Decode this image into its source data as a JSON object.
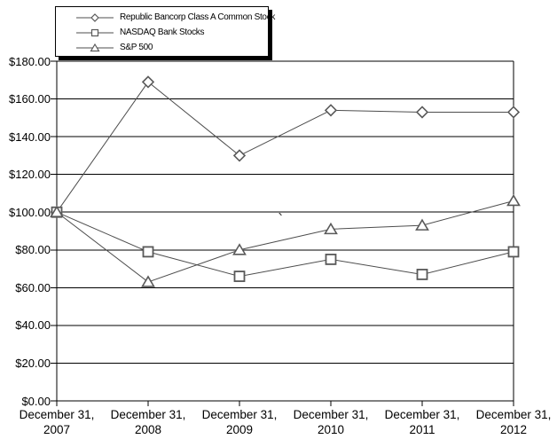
{
  "chart_data": {
    "type": "line",
    "title": "",
    "categories": [
      "December 31, 2007",
      "December 31, 2008",
      "December 31, 2009",
      "December 31, 2010",
      "December 31, 2011",
      "December 31, 2012"
    ],
    "series": [
      {
        "name": "Republic Bancorp Class A Common Stock",
        "marker": "diamond",
        "values": [
          100,
          169,
          130,
          154,
          153,
          153
        ]
      },
      {
        "name": "NASDAQ Bank Stocks",
        "marker": "square",
        "values": [
          100,
          79,
          66,
          75,
          67,
          79
        ]
      },
      {
        "name": "S&P 500",
        "marker": "triangle",
        "values": [
          100,
          63,
          80,
          91,
          93,
          106
        ]
      }
    ],
    "xlabel": "",
    "ylabel": "",
    "ylim": [
      0,
      180
    ],
    "y_tick_step": 20,
    "y_tick_labels": [
      "$0.00",
      "$20.00",
      "$40.00",
      "$60.00",
      "$80.00",
      "$100.00",
      "$120.00",
      "$140.00",
      "$160.00",
      "$180.00"
    ],
    "grid": "horizontal",
    "legend_position": "top-left",
    "colors": {
      "background": "#ffffff",
      "grid": "#000000",
      "axis": "#000000",
      "line": "#4d4d4d",
      "marker_stroke": "#595959",
      "marker_fill": "#ffffff",
      "text": "#000000"
    }
  },
  "stray_mark": "`"
}
